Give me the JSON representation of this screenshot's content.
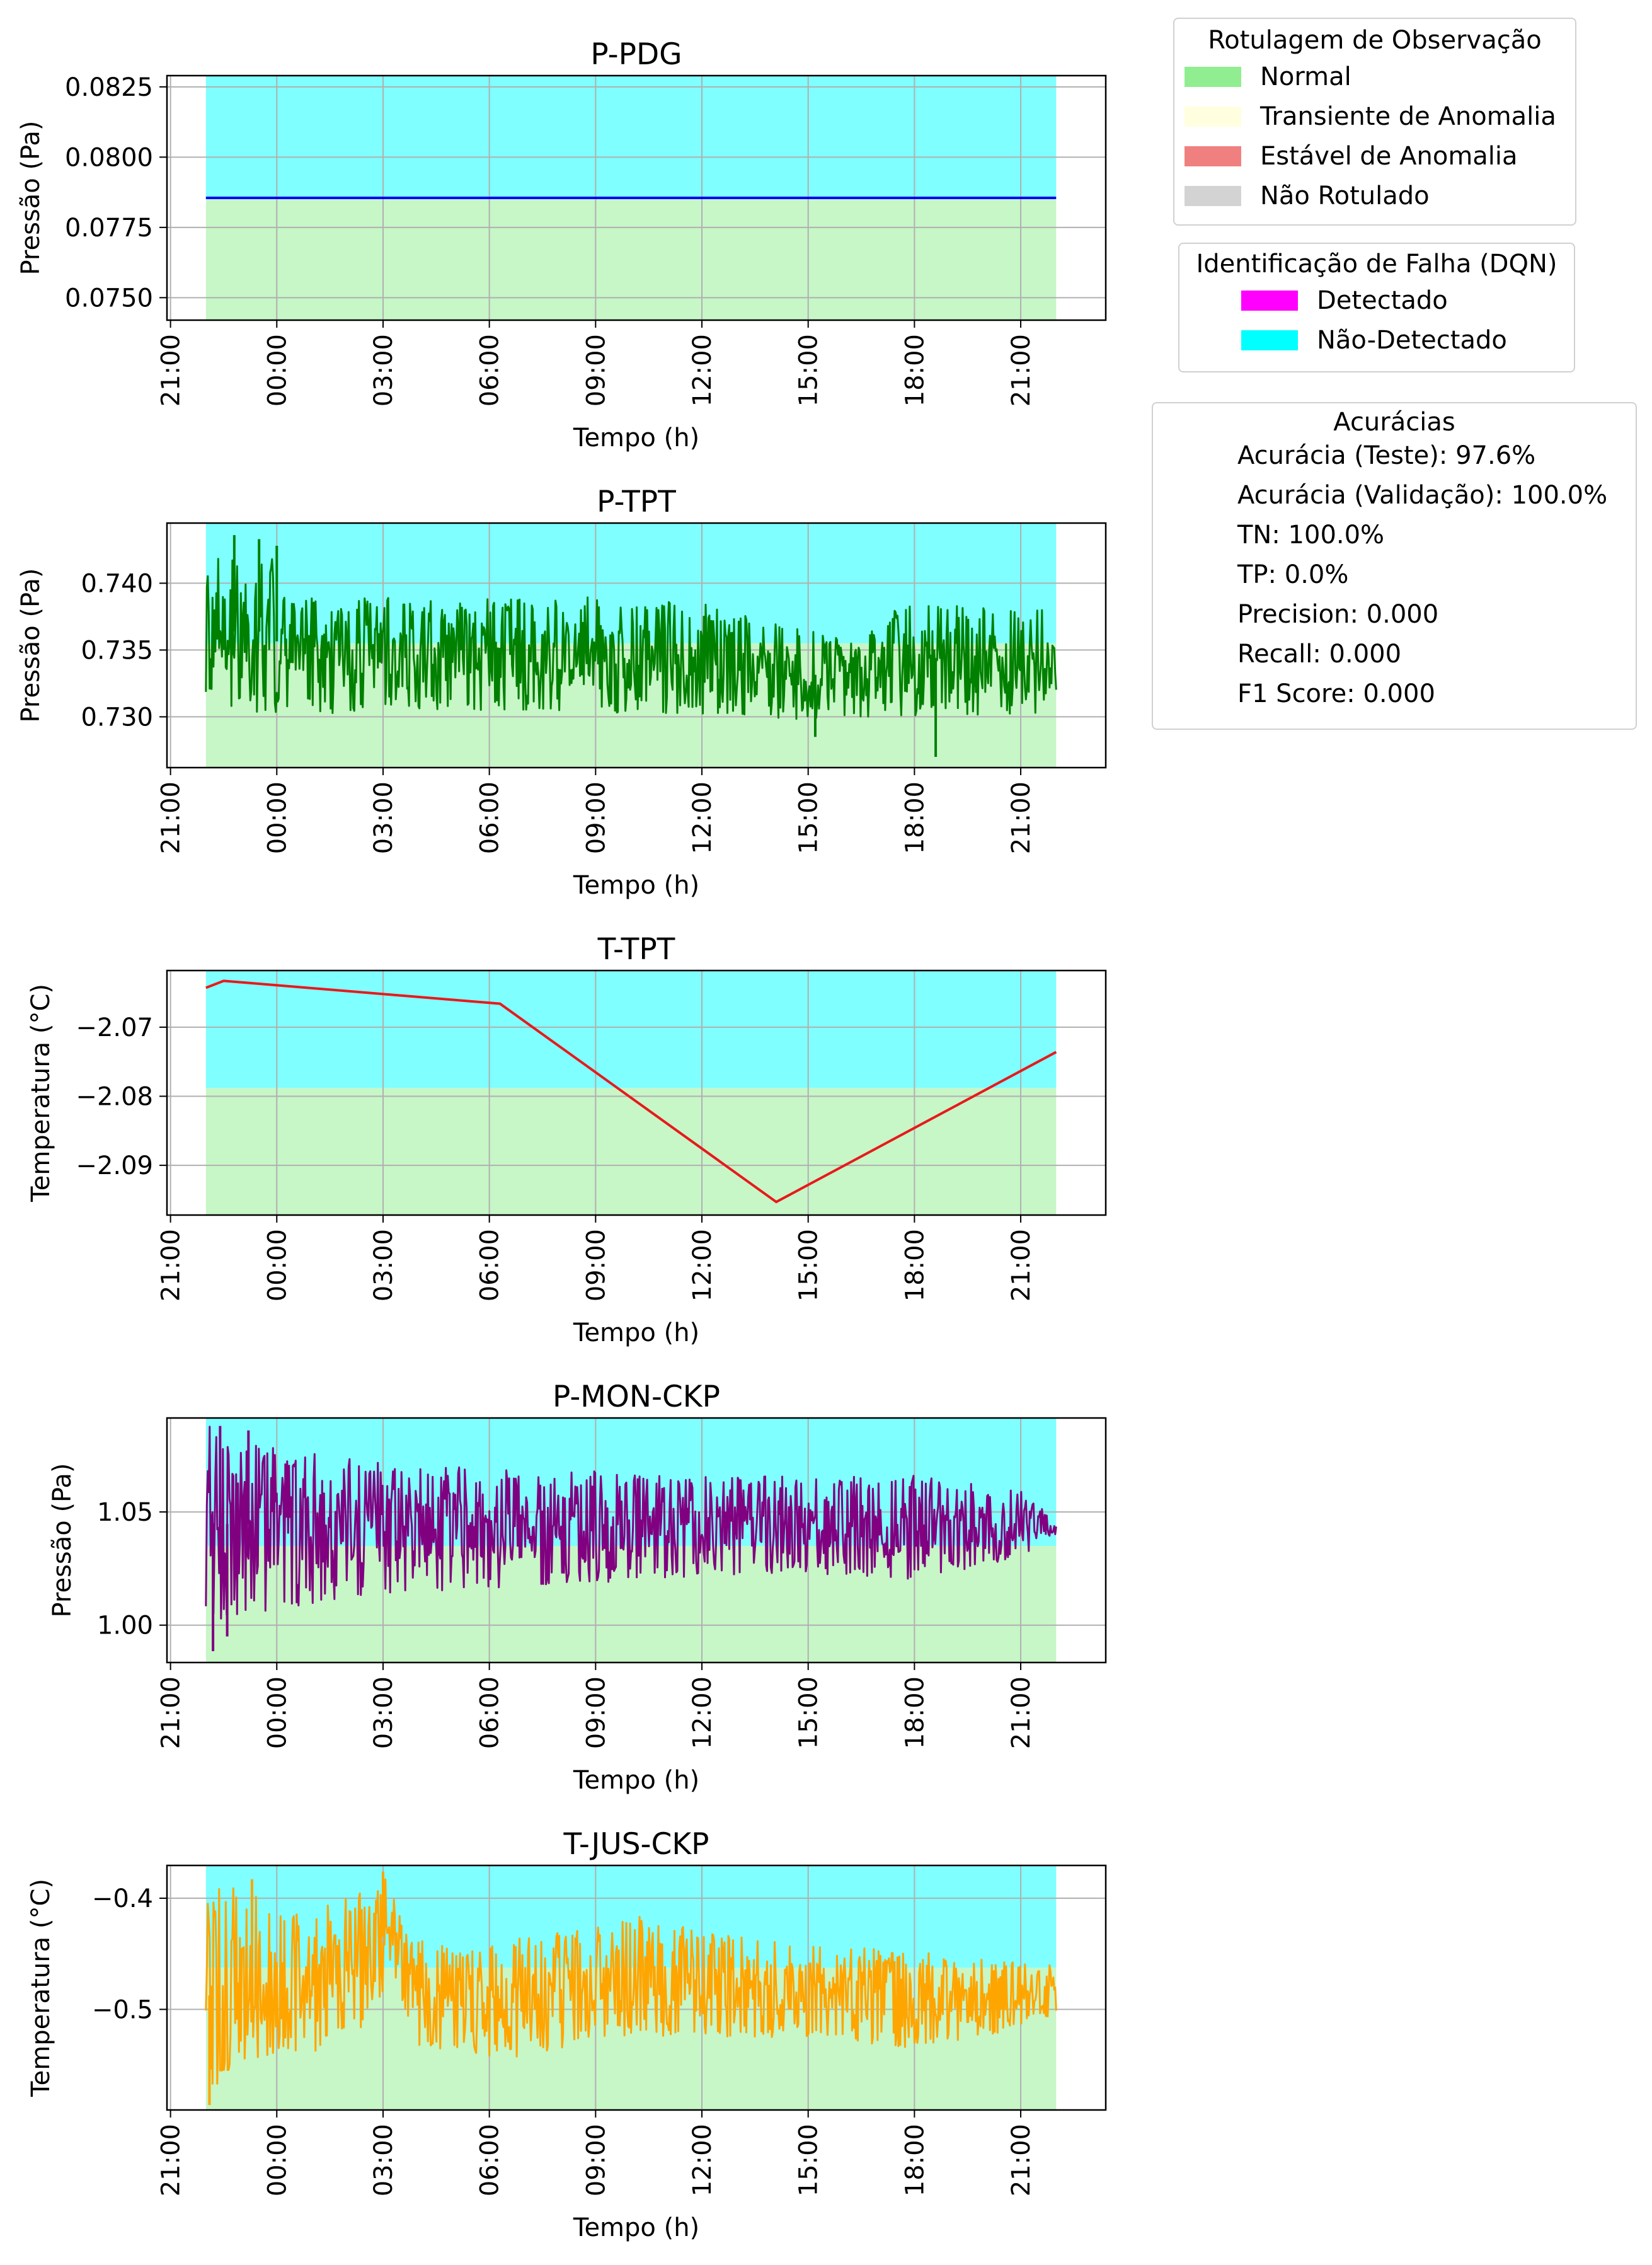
{
  "legends": {
    "labeling": {
      "title": "Rotulagem de Observação",
      "items": [
        {
          "label": "Normal",
          "color": "#90EE90"
        },
        {
          "label": "Transiente de Anomalia",
          "color": "#FFFFE0"
        },
        {
          "label": "Estável de Anomalia",
          "color": "#F08080"
        },
        {
          "label": "Não Rotulado",
          "color": "#D3D3D3"
        }
      ]
    },
    "detection": {
      "title": "Identificação de Falha (DQN)",
      "items": [
        {
          "label": "Detectado",
          "color": "#FF00FF"
        },
        {
          "label": "Não-Detectado",
          "color": "#00FFFF"
        }
      ]
    },
    "accuracy": {
      "title": "Acurácias",
      "items": [
        "Acurácia (Teste): 97.6%",
        "Acurácia (Validação): 100.0%",
        "TN: 100.0%",
        "TP: 0.0%",
        "Precision: 0.000",
        "Recall: 0.000",
        "F1 Score: 0.000"
      ]
    }
  },
  "chart_data": [
    {
      "type": "line",
      "title": "P-PDG",
      "xlabel": "Tempo (h)",
      "ylabel": "Pressão (Pa)",
      "xlim": [
        -3.1,
        23.4
      ],
      "ylim": [
        0.0742,
        0.0829
      ],
      "x_ticks": [
        -3,
        0,
        3,
        6,
        9,
        12,
        15,
        18,
        21
      ],
      "x_tick_labels": [
        "21:00",
        "00:00",
        "03:00",
        "06:00",
        "09:00",
        "12:00",
        "15:00",
        "18:00",
        "21:00"
      ],
      "y_ticks": [
        0.075,
        0.0775,
        0.08,
        0.0825
      ],
      "y_tick_labels": [
        "0.0750",
        "0.0775",
        "0.0800",
        "0.0825"
      ],
      "grid": true,
      "line_color": "#0000FF",
      "span_start": -2.0,
      "span_end": 22.0,
      "normal_band_top": 0.07855,
      "detection_color": "#00FFFF",
      "label_color": "#90EE90",
      "series": {
        "mode": "line",
        "points": [
          [
            -2.0,
            0.07855
          ],
          [
            22.0,
            0.07855
          ]
        ]
      }
    },
    {
      "type": "line",
      "title": "P-TPT",
      "xlabel": "Tempo (h)",
      "ylabel": "Pressão (Pa)",
      "xlim": [
        -3.1,
        23.4
      ],
      "ylim": [
        0.7262,
        0.7445
      ],
      "x_ticks": [
        -3,
        0,
        3,
        6,
        9,
        12,
        15,
        18,
        21
      ],
      "x_tick_labels": [
        "21:00",
        "00:00",
        "03:00",
        "06:00",
        "09:00",
        "12:00",
        "15:00",
        "18:00",
        "21:00"
      ],
      "y_ticks": [
        0.73,
        0.735,
        0.74
      ],
      "y_tick_labels": [
        "0.730",
        "0.735",
        "0.740"
      ],
      "grid": true,
      "line_color": "#008000",
      "span_start": -2.0,
      "span_end": 22.0,
      "normal_band_top": 0.7355,
      "detection_color": "#00FFFF",
      "label_color": "#90EE90",
      "series": {
        "mode": "noise",
        "lower": [
          [
            -2.0,
            0.7308
          ],
          [
            0.0,
            0.7302
          ],
          [
            6.0,
            0.7305
          ],
          [
            12.0,
            0.7302
          ],
          [
            15.0,
            0.7298
          ],
          [
            18.0,
            0.73
          ],
          [
            22.0,
            0.7302
          ]
        ],
        "upper": [
          [
            -2.0,
            0.742
          ],
          [
            -0.2,
            0.7425
          ],
          [
            0.3,
            0.739
          ],
          [
            6.0,
            0.7388
          ],
          [
            9.0,
            0.739
          ],
          [
            12.0,
            0.7385
          ],
          [
            14.5,
            0.737
          ],
          [
            16.5,
            0.7355
          ],
          [
            17.5,
            0.7385
          ],
          [
            22.0,
            0.738
          ]
        ],
        "spikes_high": [
          [
            -1.2,
            0.7436
          ],
          [
            -0.5,
            0.7433
          ],
          [
            0.0,
            0.7428
          ]
        ],
        "spikes_low": [
          [
            18.6,
            0.727
          ],
          [
            15.2,
            0.7285
          ]
        ]
      }
    },
    {
      "type": "line",
      "title": "T-TPT",
      "xlabel": "Tempo (h)",
      "ylabel": "Temperatura (°C)",
      "xlim": [
        -3.1,
        23.4
      ],
      "ylim": [
        -2.0972,
        -2.0618
      ],
      "x_ticks": [
        -3,
        0,
        3,
        6,
        9,
        12,
        15,
        18,
        21
      ],
      "x_tick_labels": [
        "21:00",
        "00:00",
        "03:00",
        "06:00",
        "09:00",
        "12:00",
        "15:00",
        "18:00",
        "21:00"
      ],
      "y_ticks": [
        -2.09,
        -2.08,
        -2.07
      ],
      "y_tick_labels": [
        "−2.09",
        "−2.08",
        "−2.07"
      ],
      "grid": true,
      "line_color": "#E8191B",
      "span_start": -2.0,
      "span_end": 22.0,
      "normal_band_top": -2.0788,
      "detection_color": "#00FFFF",
      "label_color": "#90EE90",
      "series": {
        "mode": "line",
        "points": [
          [
            -2.0,
            -2.0643
          ],
          [
            -1.5,
            -2.0633
          ],
          [
            6.3,
            -2.0666
          ],
          [
            14.1,
            -2.0953
          ],
          [
            22.0,
            -2.0736
          ]
        ]
      }
    },
    {
      "type": "line",
      "title": "P-MON-CKP",
      "xlabel": "Tempo (h)",
      "ylabel": "Pressão (Pa)",
      "xlim": [
        -3.1,
        23.4
      ],
      "ylim": [
        0.9835,
        1.0915
      ],
      "x_ticks": [
        -3,
        0,
        3,
        6,
        9,
        12,
        15,
        18,
        21
      ],
      "x_tick_labels": [
        "21:00",
        "00:00",
        "03:00",
        "06:00",
        "09:00",
        "12:00",
        "15:00",
        "18:00",
        "21:00"
      ],
      "y_ticks": [
        1.0,
        1.05
      ],
      "y_tick_labels": [
        "1.00",
        "1.05"
      ],
      "grid": true,
      "line_color": "#800080",
      "span_start": -2.0,
      "span_end": 22.0,
      "normal_band_top": 1.035,
      "detection_color": "#00FFFF",
      "label_color": "#90EE90",
      "series": {
        "mode": "noise",
        "lower": [
          [
            -2.0,
            1.002
          ],
          [
            0.0,
            1.006
          ],
          [
            3.0,
            1.012
          ],
          [
            6.0,
            1.016
          ],
          [
            9.0,
            1.018
          ],
          [
            12.0,
            1.022
          ],
          [
            15.0,
            1.022
          ],
          [
            18.0,
            1.02
          ],
          [
            21.0,
            1.03
          ],
          [
            22.0,
            1.04
          ]
        ],
        "upper": [
          [
            -2.0,
            1.088
          ],
          [
            0.0,
            1.082
          ],
          [
            3.0,
            1.075
          ],
          [
            6.0,
            1.069
          ],
          [
            9.0,
            1.068
          ],
          [
            12.0,
            1.066
          ],
          [
            15.0,
            1.066
          ],
          [
            18.0,
            1.066
          ],
          [
            21.0,
            1.06
          ],
          [
            22.0,
            1.046
          ]
        ],
        "spikes_high": [
          [
            -1.6,
            1.088
          ],
          [
            -0.8,
            1.086
          ]
        ],
        "spikes_low": [
          [
            -1.8,
            0.9885
          ],
          [
            -1.4,
            0.995
          ]
        ]
      }
    },
    {
      "type": "line",
      "title": "T-JUS-CKP",
      "xlabel": "Tempo (h)",
      "ylabel": "Temperatura (°C)",
      "xlim": [
        -3.1,
        23.4
      ],
      "ylim": [
        -0.5905,
        -0.3705
      ],
      "x_ticks": [
        -3,
        0,
        3,
        6,
        9,
        12,
        15,
        18,
        21
      ],
      "x_tick_labels": [
        "21:00",
        "00:00",
        "03:00",
        "06:00",
        "09:00",
        "12:00",
        "15:00",
        "18:00",
        "21:00"
      ],
      "y_ticks": [
        -0.5,
        -0.4
      ],
      "y_tick_labels": [
        "−0.5",
        "−0.4"
      ],
      "grid": true,
      "line_color": "#FFA500",
      "span_start": -2.0,
      "span_end": 22.0,
      "normal_band_top": -0.4625,
      "detection_color": "#00FFFF",
      "label_color": "#90EE90",
      "series": {
        "mode": "noise",
        "lower": [
          [
            -2.0,
            -0.585
          ],
          [
            -1.0,
            -0.545
          ],
          [
            0.0,
            -0.545
          ],
          [
            1.5,
            -0.535
          ],
          [
            2.5,
            -0.515
          ],
          [
            3.3,
            -0.47
          ],
          [
            4.0,
            -0.535
          ],
          [
            6.0,
            -0.548
          ],
          [
            8.0,
            -0.535
          ],
          [
            9.0,
            -0.525
          ],
          [
            12.0,
            -0.525
          ],
          [
            15.0,
            -0.525
          ],
          [
            18.0,
            -0.535
          ],
          [
            20.0,
            -0.525
          ],
          [
            22.0,
            -0.505
          ]
        ],
        "upper": [
          [
            -2.0,
            -0.395
          ],
          [
            -1.0,
            -0.385
          ],
          [
            0.0,
            -0.41
          ],
          [
            1.5,
            -0.405
          ],
          [
            2.7,
            -0.39
          ],
          [
            3.1,
            -0.38
          ],
          [
            3.8,
            -0.435
          ],
          [
            6.0,
            -0.44
          ],
          [
            9.0,
            -0.425
          ],
          [
            10.5,
            -0.415
          ],
          [
            12.0,
            -0.43
          ],
          [
            15.0,
            -0.44
          ],
          [
            18.0,
            -0.448
          ],
          [
            20.0,
            -0.455
          ],
          [
            22.0,
            -0.46
          ]
        ],
        "spikes_high": [
          [
            -0.7,
            -0.383
          ],
          [
            3.0,
            -0.376
          ]
        ],
        "spikes_low": [
          [
            -1.9,
            -0.586
          ]
        ]
      }
    }
  ]
}
